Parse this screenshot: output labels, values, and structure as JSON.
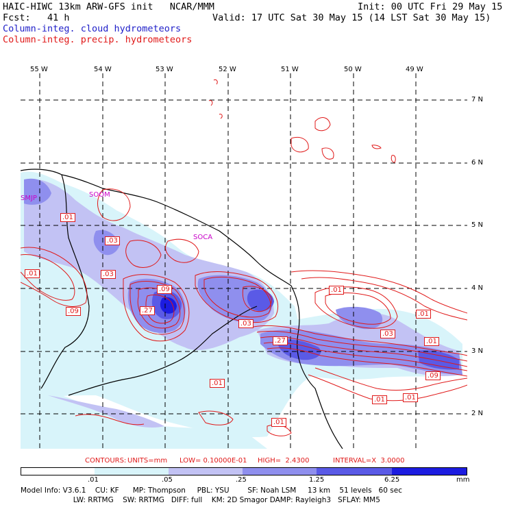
{
  "header": {
    "title_line": "HAIC-HIWC 13km ARW-GFS init   NCAR/MMM",
    "init_line": "Init: 00 UTC Fri 29 May 15",
    "fcst_line": "Fcst:   41 h",
    "valid_line": "Valid: 17 UTC Sat 30 May 15 (14 LST Sat 30 May 15)",
    "field1": "Column-integ. cloud hydrometeors",
    "field2": "Column-integ. precip. hydrometeors"
  },
  "axes": {
    "lon_labels": [
      "55 W",
      "54 W",
      "53 W",
      "52 W",
      "51 W",
      "50 W",
      "49 W"
    ],
    "lat_labels": [
      "7 N",
      "6 N",
      "5 N",
      "4 N",
      "3 N",
      "2 N"
    ]
  },
  "stations": [
    "SMJP",
    "SOOM",
    "SOCA"
  ],
  "contour_labels": [
    ".01",
    ".03",
    ".01",
    ".03",
    ".09",
    ".27",
    ".09",
    ".03",
    ".27",
    ".01",
    ".03",
    ".01",
    ".01",
    ".01",
    ".09",
    ".01",
    ".01",
    ".01"
  ],
  "contour_info": {
    "contours": "CONTOURS:",
    "units": "UNITS=mm",
    "low": "LOW= 0.10000E-01",
    "high": "HIGH=  2.4300",
    "interval": "INTERVAL=X  3.0000"
  },
  "colorbar": {
    "ticks": [
      ".01",
      ".05",
      ".25",
      "1.25",
      "6.25"
    ],
    "unit": "mm",
    "colors": [
      "#ffffff",
      "#d8f4fa",
      "#c2c2f4",
      "#8f8fee",
      "#5a5ae6",
      "#1c1ce0"
    ]
  },
  "model_info": {
    "line1": "Model Info: V3.6.1    CU: KF      MP: Thompson     PBL: YSU        SF: Noah LSM     13 km    51 levels   60 sec",
    "line2": "                       LW: RRTMG    SW: RRTMG   DIFF: full    KM: 2D Smagor DAMP: Rayleigh3   SFLAY: MM5"
  },
  "colors": {
    "cloud_text": "#1e1ec8",
    "precip_text": "#e01818",
    "contour": "#e01818",
    "station": "#c800c8"
  }
}
